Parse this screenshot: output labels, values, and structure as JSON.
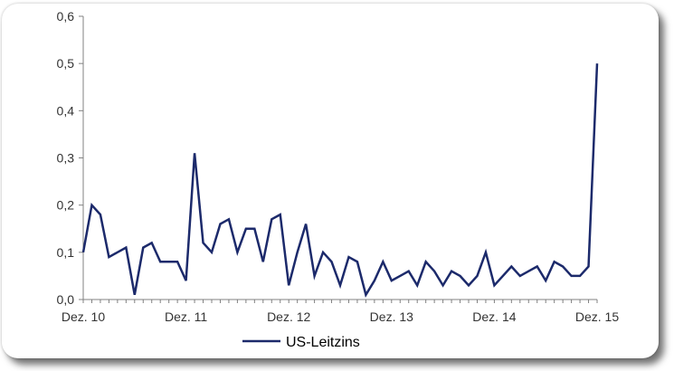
{
  "chart_data": {
    "type": "line",
    "title": "",
    "xlabel": "",
    "ylabel": "",
    "ylim": [
      0,
      0.6
    ],
    "yticks": [
      0,
      0.1,
      0.2,
      0.3,
      0.4,
      0.5,
      0.6
    ],
    "ytick_labels": [
      "0,0",
      "0,1",
      "0,2",
      "0,3",
      "0,4",
      "0,5",
      "0,6"
    ],
    "x_tick_labels": [
      {
        "index": 0,
        "label": "Dez. 10"
      },
      {
        "index": 12,
        "label": "Dez. 11"
      },
      {
        "index": 24,
        "label": "Dez. 12"
      },
      {
        "index": 36,
        "label": "Dez. 13"
      },
      {
        "index": 48,
        "label": "Dez. 14"
      },
      {
        "index": 60,
        "label": "Dez. 15"
      }
    ],
    "grid": false,
    "legend_position": "bottom",
    "series": [
      {
        "name": "US-Leitzins",
        "color": "#1c2a6b",
        "values": [
          0.1,
          0.2,
          0.18,
          0.09,
          0.1,
          0.11,
          0.01,
          0.11,
          0.12,
          0.08,
          0.08,
          0.08,
          0.04,
          0.31,
          0.12,
          0.1,
          0.16,
          0.17,
          0.1,
          0.15,
          0.15,
          0.08,
          0.17,
          0.18,
          0.03,
          0.1,
          0.16,
          0.05,
          0.1,
          0.08,
          0.03,
          0.09,
          0.08,
          0.01,
          0.04,
          0.08,
          0.04,
          0.05,
          0.06,
          0.03,
          0.08,
          0.06,
          0.03,
          0.06,
          0.05,
          0.03,
          0.05,
          0.1,
          0.03,
          0.05,
          0.07,
          0.05,
          0.06,
          0.07,
          0.04,
          0.08,
          0.07,
          0.05,
          0.05,
          0.07,
          0.5
        ]
      }
    ]
  }
}
